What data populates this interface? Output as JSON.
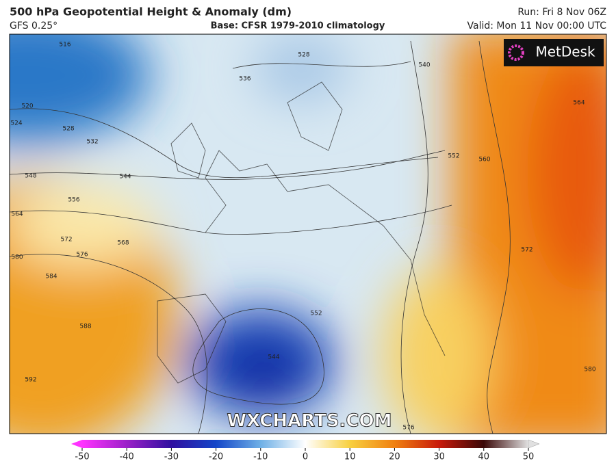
{
  "header": {
    "title": "500 hPa Geopotential Height & Anomaly (dm)",
    "model": "GFS 0.25°",
    "base": "Base: CFSR 1979-2010 climatology",
    "run": "Run: Fri 8 Nov 06Z",
    "valid": "Valid: Mon 11 Nov 00:00 UTC"
  },
  "logo": "MetDesk",
  "watermark": "WXCHARTS.COM",
  "contour_labels": [
    516,
    520,
    524,
    528,
    532,
    536,
    528,
    540,
    544,
    548,
    552,
    556,
    564,
    564,
    568,
    572,
    576,
    580,
    584,
    588,
    592,
    552,
    544,
    576,
    572,
    580,
    560
  ],
  "colorbar": {
    "range": [
      -50,
      50
    ],
    "ticks": [
      -50,
      -40,
      -30,
      -20,
      -10,
      0,
      10,
      20,
      30,
      40,
      50
    ]
  }
}
